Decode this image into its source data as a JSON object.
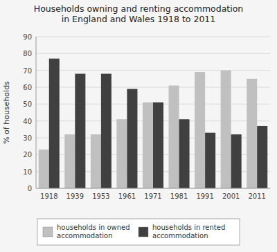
{
  "chart_data": {
    "type": "bar",
    "title": "Households owning and renting accommodation\nin England and Wales 1918 to 2011",
    "categories": [
      "1918",
      "1939",
      "1953",
      "1961",
      "1971",
      "1981",
      "1991",
      "2001",
      "2011"
    ],
    "series": [
      {
        "name": "households in owned\naccommodation",
        "color": "#c0c0c0",
        "values": [
          23,
          32,
          32,
          41,
          51,
          61,
          69,
          70,
          65
        ]
      },
      {
        "name": "households in rented\naccommodation",
        "color": "#404040",
        "values": [
          77,
          68,
          68,
          59,
          51,
          41,
          33,
          32,
          37
        ]
      }
    ],
    "ylabel": "% of households",
    "ylim": [
      0,
      90
    ],
    "yticks": [
      0,
      10,
      20,
      30,
      40,
      50,
      60,
      70,
      80,
      90
    ],
    "grid": true,
    "legend": "bottom"
  }
}
